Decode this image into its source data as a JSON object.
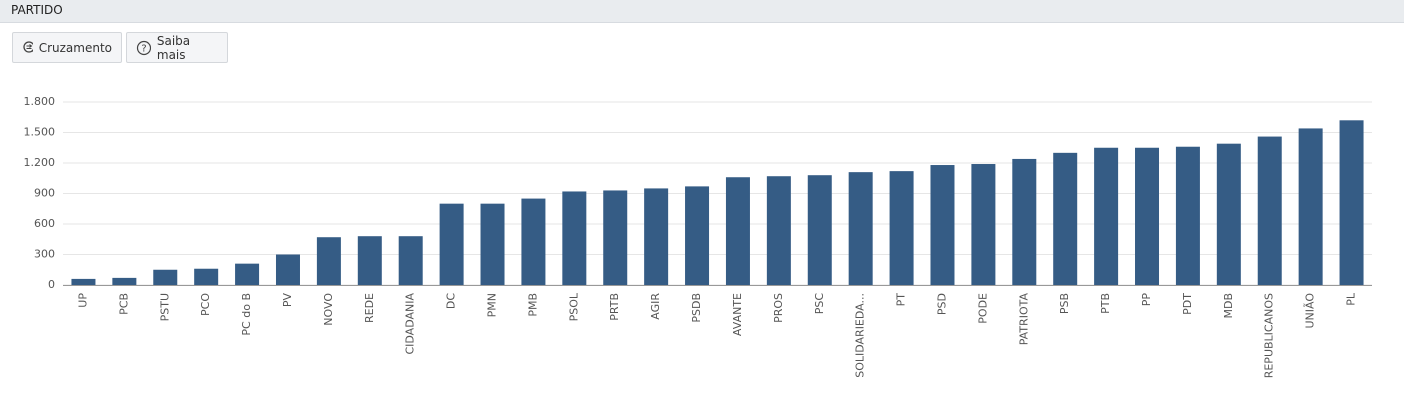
{
  "panel": {
    "title": "PARTIDO"
  },
  "buttons": [
    {
      "label": "Cruzamento"
    },
    {
      "label": "Saiba mais"
    }
  ],
  "chart_data": {
    "type": "bar",
    "categories": [
      "UP",
      "PCB",
      "PSTU",
      "PCO",
      "PC do B",
      "PV",
      "NOVO",
      "REDE",
      "CIDADANIA",
      "DC",
      "PMN",
      "PMB",
      "PSOL",
      "PRTB",
      "AGIR",
      "PSDB",
      "AVANTE",
      "PROS",
      "PSC",
      "SOLIDARIEDA...",
      "PT",
      "PSD",
      "PODE",
      "PATRIOTA",
      "PSB",
      "PTB",
      "PP",
      "PDT",
      "MDB",
      "REPUBLICANOS",
      "UNIÃO",
      "PL"
    ],
    "values": [
      60,
      70,
      150,
      160,
      210,
      300,
      470,
      480,
      480,
      800,
      800,
      850,
      920,
      930,
      950,
      970,
      1060,
      1070,
      1080,
      1110,
      1120,
      1180,
      1190,
      1240,
      1300,
      1350,
      1350,
      1360,
      1390,
      1460,
      1540,
      1620
    ],
    "color": "#355c85",
    "ylim": [
      0,
      1800
    ],
    "yticks": [
      0,
      300,
      600,
      900,
      {
        "value": 1200,
        "label": "1.200"
      },
      {
        "value": 1500,
        "label": "1.500"
      },
      {
        "value": 1800,
        "label": "1.800"
      }
    ],
    "grid": true
  }
}
